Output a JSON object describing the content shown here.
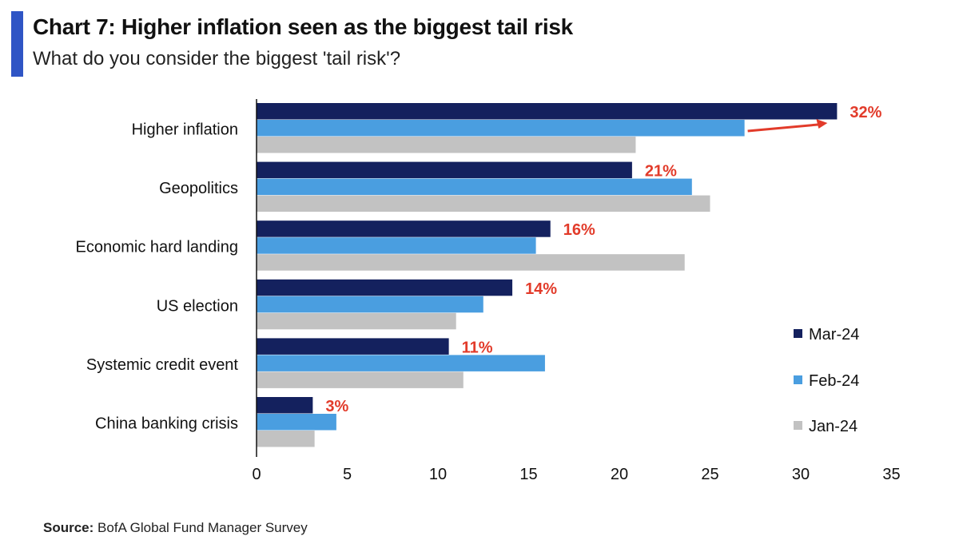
{
  "header": {
    "title": "Chart 7: Higher inflation seen as the biggest tail risk",
    "subtitle": "What do you consider the biggest 'tail risk'?"
  },
  "footer": {
    "source_label": "Source:",
    "source_text": "BofA Global Fund Manager Survey"
  },
  "colors": {
    "accent_bar": "#2f55c5",
    "mar24": "#14215e",
    "feb24": "#4a9ee0",
    "jan24": "#c2c2c2",
    "annotation": "#e23b2a",
    "axis": "#111111"
  },
  "chart_data": {
    "type": "bar",
    "orientation": "horizontal",
    "categories": [
      "Higher inflation",
      "Geopolitics",
      "Economic hard landing",
      "US election",
      "Systemic credit event",
      "China banking crisis"
    ],
    "series": [
      {
        "name": "Mar-24",
        "values": [
          32,
          20.7,
          16.2,
          14.1,
          10.6,
          3.1
        ]
      },
      {
        "name": "Feb-24",
        "values": [
          26.9,
          24.0,
          15.4,
          12.5,
          15.9,
          4.4
        ]
      },
      {
        "name": "Jan-24",
        "values": [
          20.9,
          25.0,
          23.6,
          11.0,
          11.4,
          3.2
        ]
      }
    ],
    "data_labels": [
      "32%",
      "21%",
      "16%",
      "14%",
      "11%",
      "3%"
    ],
    "xticks": [
      0,
      5,
      10,
      15,
      20,
      25,
      30,
      35
    ],
    "xlim": [
      0,
      35
    ],
    "xlabel": "",
    "ylabel": "",
    "grid": false,
    "legend_position": "right"
  }
}
